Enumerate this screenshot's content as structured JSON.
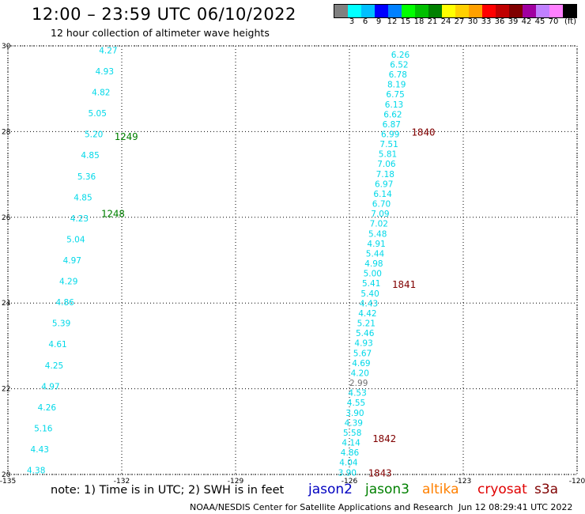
{
  "header": {
    "title": "12:00 – 23:59 UTC 06/10/2022",
    "subtitle": "12 hour collection of altimeter wave heights"
  },
  "legend": {
    "colors": [
      "#808080",
      "#00ffff",
      "#00bfff",
      "#0000ff",
      "#0080ff",
      "#00ff00",
      "#00c000",
      "#008000",
      "#ffff00",
      "#ffd000",
      "#ffa000",
      "#ff0000",
      "#c00000",
      "#800000",
      "#a000a0",
      "#c080ff",
      "#ff80ff",
      "#000000"
    ],
    "labels": [
      "3",
      "6",
      "9",
      "12",
      "15",
      "18",
      "21",
      "24",
      "27",
      "30",
      "33",
      "36",
      "39",
      "42",
      "45",
      "70"
    ],
    "unit": "(ft)"
  },
  "map": {
    "lon_ticks": [
      "-135",
      "-132",
      "-129",
      "-126",
      "-123",
      "-120"
    ],
    "lat_ticks": [
      "30",
      "28",
      "26",
      "24",
      "22",
      "20"
    ],
    "lon_range": [
      -135,
      -120
    ],
    "lat_range": [
      20,
      30
    ]
  },
  "tracks": [
    {
      "id": "track-a",
      "color": "#00d8e8",
      "start": {
        "lon": -134.5,
        "lat": 20.1
      },
      "end": {
        "lon": -132.6,
        "lat": 29.9
      },
      "values": [
        "4.38",
        "4.43",
        "5.16",
        "4.26",
        "4.97",
        "4.25",
        "4.61",
        "5.39",
        "4.86",
        "4.29",
        "4.97",
        "5.04",
        "4.23",
        "4.85",
        "5.36",
        "4.85",
        "5.20",
        "5.05",
        "4.82",
        "4.93",
        "4.27"
      ],
      "time_labels": [
        {
          "text": "1248",
          "lat": 26.1,
          "color": "#008000"
        },
        {
          "text": "1249",
          "lat": 27.9,
          "color": "#008000"
        }
      ]
    },
    {
      "id": "track-b",
      "color": "#00d8e8",
      "start": {
        "lon": -126.3,
        "lat": 20.05
      },
      "end": {
        "lon": -124.9,
        "lat": 29.8
      },
      "values": [
        "3.90",
        "4.04",
        "4.86",
        "4.14",
        "5.58",
        "4.39",
        "3.90",
        "4.55",
        "4.53",
        "2.99",
        "4.20",
        "4.69",
        "5.67",
        "4.93",
        "5.46",
        "5.21",
        "4.42",
        "4.43",
        "5.40",
        "5.41",
        "5.00",
        "4.98",
        "5.44",
        "4.91",
        "5.48",
        "7.02",
        "7.09",
        "6.70",
        "6.14",
        "6.97",
        "7.18",
        "7.06",
        "5.81",
        "7.51",
        "6.99",
        "6.87",
        "6.62",
        "6.13",
        "6.75",
        "8.19",
        "6.78",
        "6.52",
        "6.26"
      ],
      "time_labels": [
        {
          "text": "1843",
          "lat": 20.05,
          "color": "#800000"
        },
        {
          "text": "1842",
          "lat": 20.85,
          "color": "#800000"
        },
        {
          "text": "1841",
          "lat": 24.45,
          "color": "#800000"
        },
        {
          "text": "1840",
          "lat": 28.0,
          "color": "#800000"
        }
      ]
    }
  ],
  "note": "note:  1) Time is in UTC;  2) SWH is in feet",
  "satellites": [
    {
      "name": "jason2",
      "color": "#0000c0"
    },
    {
      "name": "jason3",
      "color": "#008000"
    },
    {
      "name": "altika",
      "color": "#ff8000"
    },
    {
      "name": "cryosat",
      "color": "#e00000"
    },
    {
      "name": "s3a",
      "color": "#800000"
    }
  ],
  "footer": {
    "credit": "NOAA/NESDIS Center for Satellite Applications and Research",
    "timestamp": "Jun 12 08:29:41 UTC 2022"
  }
}
